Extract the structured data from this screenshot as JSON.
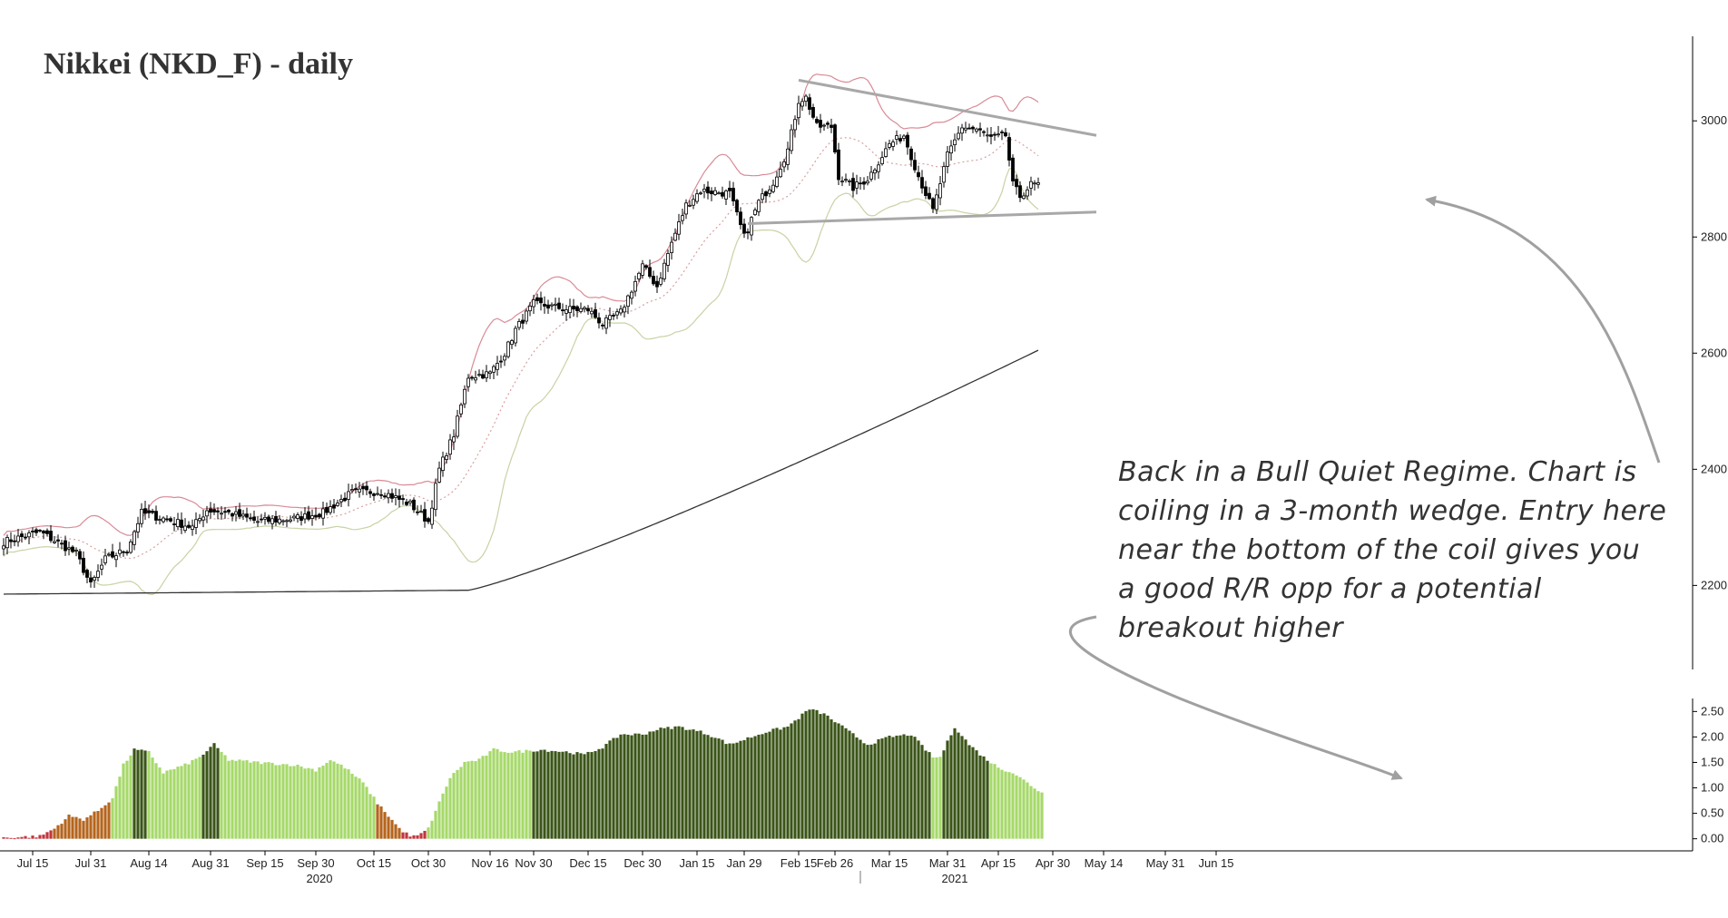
{
  "chart_data": {
    "title": "Nikkei (NKD_F) - daily",
    "type": "candlestick",
    "price_axis": {
      "ticks": [
        2200,
        2400,
        2600,
        2800,
        3000
      ],
      "range": [
        2060,
        3130
      ]
    },
    "indicator_axis": {
      "ticks": [
        "2.50",
        "2.00",
        "1.50",
        "1.00",
        "0.50",
        "0.00"
      ],
      "range": [
        -0.22,
        2.72
      ]
    },
    "x_axis": {
      "tick_labels": [
        "Jul 15",
        "Jul 31",
        "Aug 14",
        "Aug 31",
        "Sep 15",
        "Sep 30",
        "Oct 15",
        "Oct 30",
        "Nov 16",
        "Nov 30",
        "Dec 15",
        "Dec 30",
        "Jan 15",
        "Jan 29",
        "Feb 15",
        "Feb 26",
        "Mar 15",
        "Mar 31",
        "Apr 15",
        "Apr 30",
        "May 14",
        "May 31",
        "Jun 15"
      ],
      "tick_index": [
        8,
        24,
        40,
        57,
        72,
        86,
        102,
        117,
        134,
        146,
        161,
        176,
        191,
        204,
        219,
        229,
        244,
        260,
        274,
        289,
        303,
        320,
        334
      ],
      "years": [
        {
          "label": "2020",
          "index": 87
        },
        {
          "label": "2021",
          "index": 262
        }
      ]
    },
    "price_waypoints": [
      [
        0,
        2275
      ],
      [
        10,
        2292
      ],
      [
        20,
        2255
      ],
      [
        24,
        2200
      ],
      [
        28,
        2245
      ],
      [
        34,
        2262
      ],
      [
        38,
        2325
      ],
      [
        46,
        2312
      ],
      [
        52,
        2300
      ],
      [
        56,
        2330
      ],
      [
        62,
        2325
      ],
      [
        70,
        2310
      ],
      [
        80,
        2315
      ],
      [
        88,
        2325
      ],
      [
        96,
        2360
      ],
      [
        104,
        2362
      ],
      [
        112,
        2340
      ],
      [
        117,
        2310
      ],
      [
        120,
        2400
      ],
      [
        124,
        2460
      ],
      [
        128,
        2560
      ],
      [
        134,
        2565
      ],
      [
        138,
        2600
      ],
      [
        141,
        2640
      ],
      [
        146,
        2685
      ],
      [
        151,
        2680
      ],
      [
        156,
        2675
      ],
      [
        161,
        2675
      ],
      [
        165,
        2650
      ],
      [
        170,
        2670
      ],
      [
        176,
        2750
      ],
      [
        180,
        2715
      ],
      [
        184,
        2790
      ],
      [
        188,
        2855
      ],
      [
        192,
        2880
      ],
      [
        200,
        2875
      ],
      [
        204,
        2800
      ],
      [
        208,
        2860
      ],
      [
        212,
        2895
      ],
      [
        216,
        2950
      ],
      [
        219,
        3035
      ],
      [
        221,
        3040
      ],
      [
        224,
        2990
      ],
      [
        228,
        2990
      ],
      [
        230,
        2905
      ],
      [
        234,
        2885
      ],
      [
        238,
        2900
      ],
      [
        244,
        2960
      ],
      [
        248,
        2975
      ],
      [
        252,
        2905
      ],
      [
        256,
        2845
      ],
      [
        260,
        2940
      ],
      [
        264,
        2990
      ],
      [
        268,
        2985
      ],
      [
        272,
        2970
      ],
      [
        276,
        2975
      ],
      [
        278,
        2890
      ],
      [
        280,
        2870
      ],
      [
        283,
        2890
      ]
    ],
    "sma": {
      "start_value": 2185,
      "end_value": 2605
    },
    "wedge": {
      "upper": [
        [
          219,
          3070
        ],
        [
          301,
          2975
        ]
      ],
      "lower": [
        [
          205,
          2823
        ],
        [
          301,
          2843
        ]
      ]
    },
    "volatility_regime": {
      "levels": [
        [
          0,
          0.02
        ],
        [
          10,
          0.05
        ],
        [
          14,
          0.2
        ],
        [
          18,
          0.45
        ],
        [
          22,
          0.38
        ],
        [
          26,
          0.55
        ],
        [
          30,
          0.8
        ],
        [
          33,
          1.45
        ],
        [
          36,
          1.75
        ],
        [
          40,
          1.7
        ],
        [
          44,
          1.3
        ],
        [
          50,
          1.45
        ],
        [
          54,
          1.6
        ],
        [
          58,
          1.85
        ],
        [
          62,
          1.55
        ],
        [
          70,
          1.5
        ],
        [
          80,
          1.45
        ],
        [
          86,
          1.35
        ],
        [
          90,
          1.55
        ],
        [
          94,
          1.4
        ],
        [
          99,
          1.1
        ],
        [
          103,
          0.7
        ],
        [
          106,
          0.45
        ],
        [
          109,
          0.2
        ],
        [
          112,
          0.05
        ],
        [
          114,
          0.05
        ],
        [
          117,
          0.2
        ],
        [
          119,
          0.55
        ],
        [
          123,
          1.2
        ],
        [
          127,
          1.5
        ],
        [
          131,
          1.55
        ],
        [
          135,
          1.75
        ],
        [
          140,
          1.7
        ],
        [
          148,
          1.75
        ],
        [
          156,
          1.7
        ],
        [
          160,
          1.65
        ],
        [
          165,
          1.8
        ],
        [
          170,
          2.05
        ],
        [
          176,
          2.05
        ],
        [
          180,
          2.15
        ],
        [
          186,
          2.2
        ],
        [
          192,
          2.1
        ],
        [
          196,
          2.0
        ],
        [
          200,
          1.85
        ],
        [
          206,
          2.0
        ],
        [
          210,
          2.1
        ],
        [
          216,
          2.2
        ],
        [
          222,
          2.55
        ],
        [
          226,
          2.45
        ],
        [
          232,
          2.15
        ],
        [
          238,
          1.85
        ],
        [
          244,
          2.0
        ],
        [
          250,
          2.05
        ],
        [
          256,
          1.6
        ],
        [
          258,
          1.6
        ],
        [
          262,
          2.2
        ],
        [
          266,
          1.85
        ],
        [
          270,
          1.6
        ],
        [
          274,
          1.4
        ],
        [
          278,
          1.3
        ],
        [
          282,
          1.1
        ],
        [
          286,
          0.9
        ]
      ],
      "colors": {
        "low_red": "#c2363d",
        "low_brown": "#b5651d",
        "quiet_light": "#a6d96a",
        "bull_dark": "#3b5518"
      }
    },
    "annotation": {
      "lines": [
        "Back in a Bull Quiet Regime. Chart is",
        "coiling in a 3-month wedge. Entry here",
        "near the bottom of the coil gives you",
        "a good R/R opp for a potential",
        "breakout higher"
      ]
    },
    "colors": {
      "candle_up": "#ffffff",
      "candle_down": "#000000",
      "upper_band": "#d98a96",
      "lower_band": "#c7d3a4",
      "mid_band": "#d9a0a0",
      "sma": "#333333",
      "wedge": "#a8a8a8",
      "arrow": "#a0a0a0"
    }
  }
}
